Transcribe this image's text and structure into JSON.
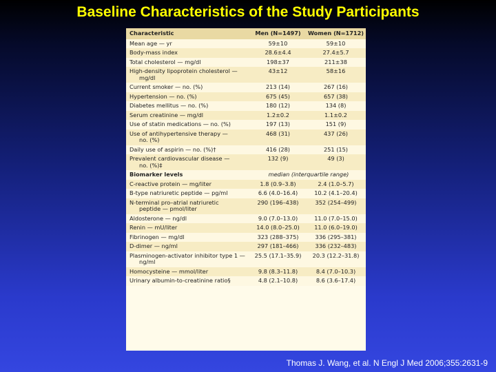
{
  "title": "Baseline Characteristics of the Study Participants",
  "table": {
    "headers": [
      "Characteristic",
      "Men (N=1497)",
      "Women (N=1712)"
    ],
    "rows": [
      {
        "label": "Mean age — yr",
        "men": "59±10",
        "women": "59±10"
      },
      {
        "label": "Body-mass index",
        "men": "28.6±4.4",
        "women": "27.4±5.7"
      },
      {
        "label": "Total cholesterol — mg/dl",
        "men": "198±37",
        "women": "211±38"
      },
      {
        "label": "High-density lipoprotein cholesterol —",
        "label2": "mg/dl",
        "men": "43±12",
        "women": "58±16"
      },
      {
        "label": "Current smoker — no. (%)",
        "men": "213 (14)",
        "women": "267 (16)"
      },
      {
        "label": "Hypertension — no. (%)",
        "men": "675 (45)",
        "women": "657 (38)"
      },
      {
        "label": "Diabetes mellitus — no. (%)",
        "men": "180 (12)",
        "women": "134 (8)"
      },
      {
        "label": "Serum creatinine — mg/dl",
        "men": "1.2±0.2",
        "women": "1.1±0.2"
      },
      {
        "label": "Use of statin medications — no. (%)",
        "men": "197 (13)",
        "women": "151 (9)"
      },
      {
        "label": "Use of antihypertensive therapy —",
        "label2": "no. (%)",
        "men": "468 (31)",
        "women": "437 (26)"
      },
      {
        "label": "Daily use of aspirin — no. (%)†",
        "men": "416 (28)",
        "women": "251 (15)"
      },
      {
        "label": "Prevalent cardiovascular disease —",
        "label2": "no. (%)‡",
        "men": "132 (9)",
        "women": "49 (3)"
      }
    ],
    "section": {
      "label": "Biomarker levels",
      "note": "median (interquartile range)"
    },
    "biomarkers": [
      {
        "label": "C-reactive protein — mg/liter",
        "men": "1.8 (0.9–3.8)",
        "women": "2.4 (1.0–5.7)"
      },
      {
        "label": "B-type natriuretic peptide — pg/ml",
        "men": "6.6 (4.0–16.4)",
        "women": "10.2 (4.1–20.4)"
      },
      {
        "label": "N-terminal pro–atrial natriuretic",
        "label2": "peptide — pmol/liter",
        "men": "290 (196–438)",
        "women": "352 (254–499)"
      },
      {
        "label": "Aldosterone — ng/dl",
        "men": "9.0 (7.0–13.0)",
        "women": "11.0 (7.0–15.0)"
      },
      {
        "label": "Renin — mU/liter",
        "men": "14.0 (8.0–25.0)",
        "women": "11.0 (6.0–19.0)"
      },
      {
        "label": "Fibrinogen — mg/dl",
        "men": "323 (288–375)",
        "women": "336 (295–381)"
      },
      {
        "label": "D-dimer — ng/ml",
        "men": "297 (181–466)",
        "women": "336 (232–483)"
      },
      {
        "label": "Plasminogen-activator inhibitor type 1 —",
        "label2": "ng/ml",
        "men": "25.5 (17.1–35.9)",
        "women": "20.3 (12.2–31.8)"
      },
      {
        "label": "Homocysteine — mmol/liter",
        "men": "9.8 (8.3–11.8)",
        "women": "8.4 (7.0–10.3)"
      },
      {
        "label": "Urinary albumin-to-creatinine ratio§",
        "men": "4.8 (2.1–10.8)",
        "women": "8.6 (3.6–17.4)"
      }
    ]
  },
  "citation": "Thomas J. Wang, et al. N Engl J Med 2006;355:2631-9"
}
